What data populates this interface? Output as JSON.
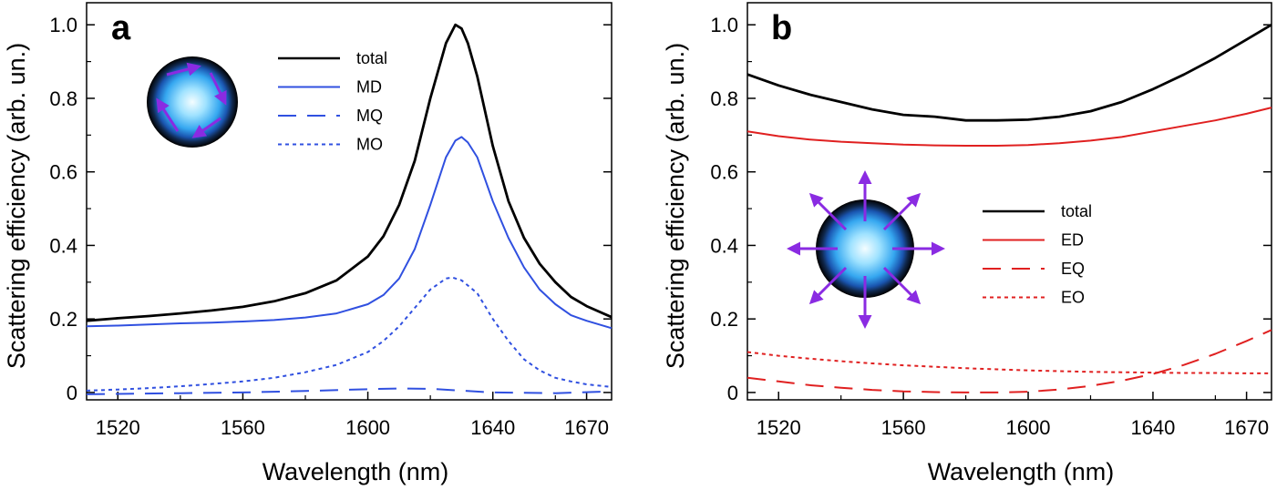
{
  "chart_data": [
    {
      "type": "line",
      "panel_label": "a",
      "xlabel": "Wavelength (nm)",
      "ylabel": "Scattering efficiency (arb. un.)",
      "xlim": [
        1510,
        1678
      ],
      "ylim": [
        -0.02,
        1.06
      ],
      "x_ticks": [
        1520,
        1560,
        1600,
        1640,
        1670
      ],
      "y_ticks": [
        0,
        0.2,
        0.4,
        0.6,
        0.8,
        1.0
      ],
      "y_tick_labels": [
        "0",
        "0.2",
        "0.4",
        "0.6",
        "0.8",
        "1.0"
      ],
      "legend_position": "upper-center",
      "inset_icon": "circulating-magnetic-dipole-sphere-icon",
      "series": [
        {
          "name": "total",
          "color": "#000000",
          "style": "solid",
          "x": [
            1510,
            1520,
            1530,
            1540,
            1550,
            1560,
            1570,
            1580,
            1590,
            1600,
            1605,
            1610,
            1615,
            1620,
            1625,
            1628,
            1630,
            1632,
            1635,
            1640,
            1645,
            1650,
            1655,
            1660,
            1665,
            1670,
            1678
          ],
          "y": [
            0.195,
            0.202,
            0.208,
            0.215,
            0.223,
            0.233,
            0.248,
            0.27,
            0.305,
            0.37,
            0.425,
            0.51,
            0.63,
            0.8,
            0.95,
            1.0,
            0.99,
            0.95,
            0.86,
            0.67,
            0.52,
            0.42,
            0.35,
            0.3,
            0.26,
            0.235,
            0.205
          ]
        },
        {
          "name": "MD",
          "color": "#3050e0",
          "style": "solid",
          "x": [
            1510,
            1520,
            1530,
            1540,
            1550,
            1560,
            1570,
            1580,
            1590,
            1600,
            1605,
            1610,
            1615,
            1620,
            1625,
            1628,
            1630,
            1632,
            1635,
            1640,
            1645,
            1650,
            1655,
            1660,
            1665,
            1670,
            1678
          ],
          "y": [
            0.18,
            0.182,
            0.185,
            0.188,
            0.19,
            0.193,
            0.197,
            0.204,
            0.215,
            0.24,
            0.265,
            0.31,
            0.39,
            0.51,
            0.64,
            0.685,
            0.695,
            0.68,
            0.64,
            0.52,
            0.42,
            0.34,
            0.28,
            0.24,
            0.21,
            0.195,
            0.175
          ]
        },
        {
          "name": "MQ",
          "color": "#3050e0",
          "style": "dashed",
          "x": [
            1510,
            1520,
            1540,
            1560,
            1580,
            1600,
            1610,
            1620,
            1630,
            1640,
            1660,
            1678
          ],
          "y": [
            -0.005,
            -0.004,
            -0.002,
            0.0,
            0.004,
            0.009,
            0.011,
            0.01,
            0.005,
            0.0,
            -0.002,
            0.003
          ]
        },
        {
          "name": "MO",
          "color": "#3050e0",
          "style": "dotted",
          "x": [
            1510,
            1520,
            1530,
            1540,
            1550,
            1560,
            1570,
            1580,
            1590,
            1600,
            1605,
            1610,
            1615,
            1620,
            1625,
            1627,
            1630,
            1635,
            1640,
            1645,
            1650,
            1655,
            1660,
            1665,
            1670,
            1678
          ],
          "y": [
            0.005,
            0.008,
            0.012,
            0.017,
            0.023,
            0.03,
            0.04,
            0.055,
            0.075,
            0.11,
            0.14,
            0.18,
            0.23,
            0.28,
            0.31,
            0.313,
            0.305,
            0.27,
            0.2,
            0.14,
            0.09,
            0.06,
            0.04,
            0.03,
            0.022,
            0.015
          ]
        }
      ]
    },
    {
      "type": "line",
      "panel_label": "b",
      "xlabel": "Wavelength (nm)",
      "ylabel": "Scattering efficiency (arb. un.)",
      "xlim": [
        1510,
        1678
      ],
      "ylim": [
        -0.02,
        1.06
      ],
      "x_ticks": [
        1520,
        1560,
        1600,
        1640,
        1670
      ],
      "y_ticks": [
        0,
        0.2,
        0.4,
        0.6,
        0.8,
        1.0
      ],
      "y_tick_labels": [
        "0",
        "0.2",
        "0.4",
        "0.6",
        "0.8",
        "1.0"
      ],
      "legend_position": "center-right",
      "inset_icon": "radiating-electric-dipole-sphere-icon",
      "series": [
        {
          "name": "total",
          "color": "#000000",
          "style": "solid",
          "x": [
            1510,
            1520,
            1530,
            1540,
            1550,
            1560,
            1570,
            1580,
            1590,
            1600,
            1610,
            1620,
            1630,
            1640,
            1650,
            1660,
            1670,
            1678
          ],
          "y": [
            0.865,
            0.835,
            0.81,
            0.79,
            0.77,
            0.755,
            0.75,
            0.74,
            0.74,
            0.742,
            0.75,
            0.765,
            0.79,
            0.825,
            0.865,
            0.91,
            0.96,
            1.0
          ]
        },
        {
          "name": "ED",
          "color": "#e02020",
          "style": "solid",
          "x": [
            1510,
            1520,
            1530,
            1540,
            1550,
            1560,
            1570,
            1580,
            1590,
            1600,
            1610,
            1620,
            1630,
            1640,
            1650,
            1660,
            1670,
            1678
          ],
          "y": [
            0.71,
            0.697,
            0.688,
            0.682,
            0.678,
            0.674,
            0.672,
            0.671,
            0.671,
            0.673,
            0.678,
            0.685,
            0.695,
            0.71,
            0.725,
            0.74,
            0.758,
            0.775
          ]
        },
        {
          "name": "EQ",
          "color": "#e02020",
          "style": "dashed",
          "x": [
            1510,
            1520,
            1530,
            1540,
            1550,
            1560,
            1570,
            1580,
            1590,
            1600,
            1610,
            1620,
            1630,
            1640,
            1650,
            1660,
            1670,
            1678
          ],
          "y": [
            0.04,
            0.03,
            0.02,
            0.013,
            0.007,
            0.003,
            0.001,
            0.0,
            0.0,
            0.002,
            0.008,
            0.018,
            0.032,
            0.05,
            0.075,
            0.105,
            0.14,
            0.17
          ]
        },
        {
          "name": "EO",
          "color": "#e02020",
          "style": "dotted",
          "x": [
            1510,
            1520,
            1530,
            1540,
            1550,
            1560,
            1570,
            1580,
            1590,
            1600,
            1610,
            1620,
            1630,
            1640,
            1650,
            1660,
            1670,
            1678
          ],
          "y": [
            0.11,
            0.1,
            0.092,
            0.085,
            0.079,
            0.074,
            0.07,
            0.066,
            0.063,
            0.06,
            0.058,
            0.056,
            0.055,
            0.054,
            0.053,
            0.053,
            0.052,
            0.052
          ]
        }
      ]
    }
  ]
}
